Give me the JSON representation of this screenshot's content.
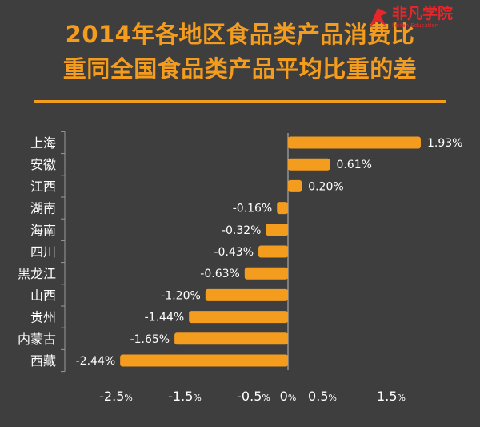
{
  "title_line1": "2014年各地区食品类产品消费比",
  "title_line2": "重同全国食品类产品平均比重的差",
  "logo": {
    "text": "非凡学院",
    "subtext": "Feifan Education"
  },
  "colors": {
    "background": "#3e3e3e",
    "accent": "#f39c1e",
    "logo": "#e8262a"
  },
  "chart_data": {
    "type": "bar",
    "orientation": "horizontal",
    "categories": [
      "上海",
      "安徽",
      "江西",
      "湖南",
      "海南",
      "四川",
      "黑龙江",
      "山西",
      "贵州",
      "内蒙古",
      "西藏"
    ],
    "values": [
      1.93,
      0.61,
      0.2,
      -0.16,
      -0.32,
      -0.43,
      -0.63,
      -1.2,
      -1.44,
      -1.65,
      -2.44
    ],
    "value_labels": [
      "1.93%",
      "0.61%",
      "0.20%",
      "-0.16%",
      "-0.32%",
      "-0.43%",
      "-0.63%",
      "-1.20%",
      "-1.44%",
      "-1.65%",
      "-2.44%"
    ],
    "unit": "%",
    "xlim": [
      -2.7,
      1.95
    ],
    "ticks": [
      {
        "value": -2.5,
        "num": "-2.5",
        "unit": "%"
      },
      {
        "value": -1.5,
        "num": "-1.5",
        "unit": "%"
      },
      {
        "value": -0.5,
        "num": "-0.5",
        "unit": "%"
      },
      {
        "value": 0,
        "num": "0",
        "unit": "%"
      },
      {
        "value": 0.5,
        "num": "0.5",
        "unit": "%"
      },
      {
        "value": 1.5,
        "num": "1.5",
        "unit": "%"
      }
    ],
    "grid": false,
    "legend": "none"
  }
}
